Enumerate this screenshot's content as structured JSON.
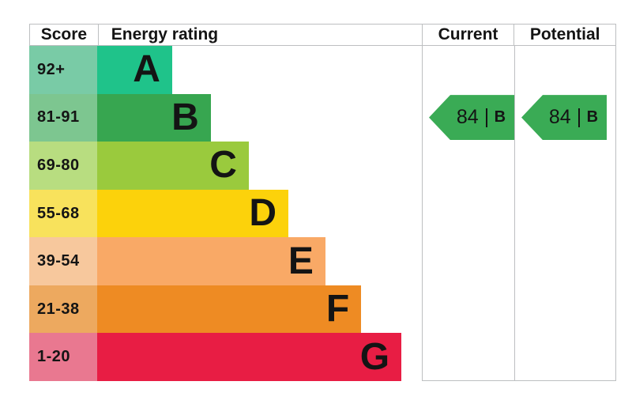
{
  "header": {
    "score": "Score",
    "energy_rating": "Energy rating",
    "current": "Current",
    "potential": "Potential"
  },
  "bands": [
    {
      "letter": "A",
      "range": "92+",
      "bar_width": "23.1%",
      "bar_color": "#1fc38a",
      "score_color": "#79cba6"
    },
    {
      "letter": "B",
      "range": "81-91",
      "bar_width": "35.0%",
      "bar_color": "#37a650",
      "score_color": "#7dc690"
    },
    {
      "letter": "C",
      "range": "69-80",
      "bar_width": "46.7%",
      "bar_color": "#9aca3d",
      "score_color": "#b8dd80"
    },
    {
      "letter": "D",
      "range": "55-68",
      "bar_width": "58.9%",
      "bar_color": "#fcd20b",
      "score_color": "#f8e25c"
    },
    {
      "letter": "E",
      "range": "39-54",
      "bar_width": "70.3%",
      "bar_color": "#f9a966",
      "score_color": "#f7c89d"
    },
    {
      "letter": "F",
      "range": "21-38",
      "bar_width": "81.3%",
      "bar_color": "#ee8b23",
      "score_color": "#eda95f"
    },
    {
      "letter": "G",
      "range": "1-20",
      "bar_width": "93.7%",
      "bar_color": "#e81d44",
      "score_color": "#e97890"
    }
  ],
  "current": {
    "score": "84",
    "rating": "B",
    "color": "#3aab55",
    "row": "1"
  },
  "potential": {
    "score": "84",
    "rating": "B",
    "color": "#3aab55",
    "row": "1"
  },
  "chart_data": {
    "type": "bar",
    "title": "EPC energy efficiency rating chart",
    "columns": [
      "Score",
      "Energy rating",
      "Current",
      "Potential"
    ],
    "categories": [
      "A",
      "B",
      "C",
      "D",
      "E",
      "F",
      "G"
    ],
    "score_ranges": [
      "92+",
      "81-91",
      "69-80",
      "55-68",
      "39-54",
      "21-38",
      "1-20"
    ],
    "bar_length_pct_of_column": [
      23.1,
      35.0,
      46.7,
      58.9,
      70.3,
      81.3,
      93.7
    ],
    "band_colors": [
      "#1fc38a",
      "#37a650",
      "#9aca3d",
      "#fcd20b",
      "#f9a966",
      "#ee8b23",
      "#e81d44"
    ],
    "score_cell_colors": [
      "#79cba6",
      "#7dc690",
      "#b8dd80",
      "#f8e25c",
      "#f7c89d",
      "#eda95f",
      "#e97890"
    ],
    "current": {
      "score": 84,
      "rating": "B"
    },
    "potential": {
      "score": 84,
      "rating": "B"
    },
    "arrow_color": "#3aab55",
    "grid": false,
    "legend_position": "none"
  }
}
